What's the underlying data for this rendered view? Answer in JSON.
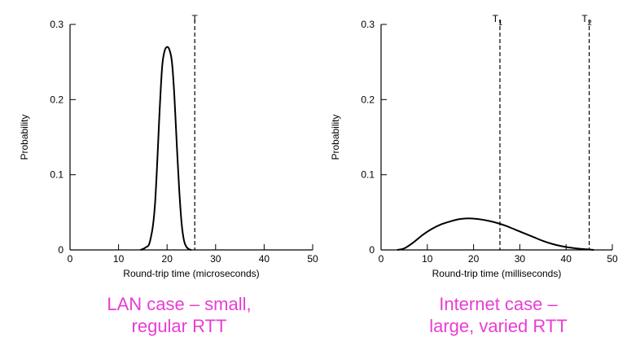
{
  "captions": {
    "left": [
      "LAN case – small,",
      "regular RTT"
    ],
    "right": [
      "Internet case –",
      "large, varied RTT"
    ],
    "color": "#e83dd3"
  },
  "chart_data": [
    {
      "type": "line",
      "title": "",
      "xlabel": "Round-trip time (microseconds)",
      "ylabel": "Probability",
      "xlim": [
        0,
        50
      ],
      "ylim": [
        0,
        0.3
      ],
      "xticks": [
        0,
        10,
        20,
        30,
        40,
        50
      ],
      "yticks": [
        0,
        0.1,
        0.2,
        0.3
      ],
      "ytick_labels": [
        "0",
        "0.1",
        "0.2",
        "0.3"
      ],
      "grid": false,
      "series": [
        {
          "x": [
            14.5,
            15.5,
            16.5,
            17.5,
            18.5,
            19.0,
            19.5,
            20.0,
            20.5,
            21.0,
            21.5,
            22.0,
            22.5,
            23.0,
            23.5,
            24.0,
            24.5,
            25.0
          ],
          "y": [
            0,
            0.003,
            0.012,
            0.06,
            0.19,
            0.245,
            0.265,
            0.27,
            0.266,
            0.25,
            0.205,
            0.14,
            0.08,
            0.035,
            0.012,
            0.004,
            0.001,
            0
          ]
        }
      ],
      "vlines": [
        {
          "x": 25.7,
          "label": "T",
          "sub": ""
        }
      ]
    },
    {
      "type": "line",
      "title": "",
      "xlabel": "Round-trip time (milliseconds)",
      "ylabel": "Probability",
      "xlim": [
        0,
        50
      ],
      "ylim": [
        0,
        0.3
      ],
      "xticks": [
        0,
        10,
        20,
        30,
        40,
        50
      ],
      "yticks": [
        0,
        0.1,
        0.2,
        0.3
      ],
      "ytick_labels": [
        "0",
        "0.1",
        "0.2",
        "0.3"
      ],
      "grid": false,
      "series": [
        {
          "x": [
            3.5,
            5,
            7,
            9,
            11,
            13,
            15,
            17,
            19,
            21,
            23,
            25,
            27,
            29,
            31,
            33,
            35,
            37,
            39,
            41,
            43,
            45,
            46
          ],
          "y": [
            0,
            0.002,
            0.01,
            0.02,
            0.028,
            0.034,
            0.038,
            0.041,
            0.042,
            0.041,
            0.039,
            0.036,
            0.032,
            0.027,
            0.022,
            0.017,
            0.012,
            0.008,
            0.005,
            0.003,
            0.0015,
            0.0005,
            0
          ]
        }
      ],
      "vlines": [
        {
          "x": 25.7,
          "label": "T",
          "sub": "1"
        },
        {
          "x": 45,
          "label": "T",
          "sub": "2"
        }
      ]
    }
  ]
}
